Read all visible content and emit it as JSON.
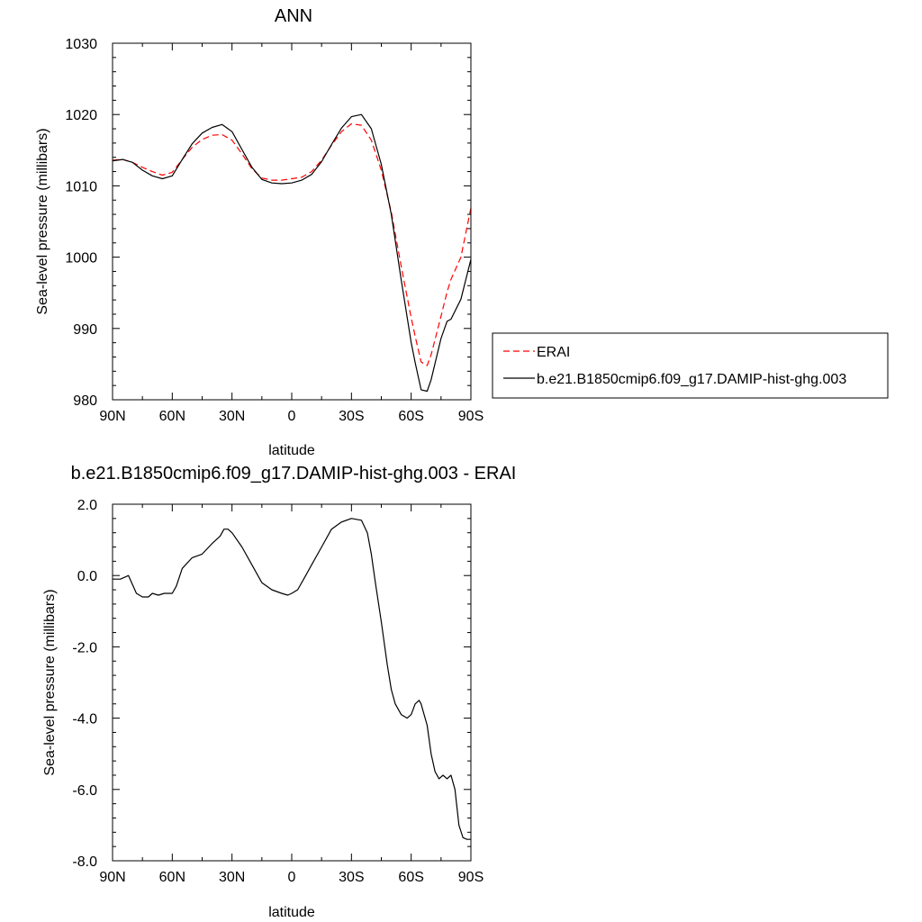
{
  "chart_data": [
    {
      "type": "line",
      "title": "ANN",
      "xlabel": "latitude",
      "ylabel": "Sea-level pressure (millibars)",
      "xlim": [
        90,
        -90
      ],
      "ylim": [
        980,
        1030
      ],
      "x_ticks": [
        90,
        60,
        30,
        0,
        -30,
        -60,
        -90
      ],
      "x_tick_labels": [
        "90N",
        "60N",
        "30N",
        "0",
        "30S",
        "60S",
        "90S"
      ],
      "y_ticks": [
        980,
        990,
        1000,
        1010,
        1020,
        1030
      ],
      "y_tick_labels": [
        "980",
        "990",
        "1000",
        "1010",
        "1020",
        "1030"
      ],
      "grid": false,
      "legend_position": "right",
      "series": [
        {
          "name": "ERAI",
          "color": "#ff0000",
          "dash": "dashed",
          "x": [
            90,
            85,
            80,
            75,
            70,
            65,
            60,
            55,
            50,
            45,
            40,
            35,
            30,
            25,
            20,
            15,
            10,
            5,
            0,
            -5,
            -10,
            -15,
            -20,
            -25,
            -30,
            -35,
            -40,
            -45,
            -50,
            -55,
            -60,
            -62,
            -65,
            -68,
            -70,
            -75,
            -78,
            -80,
            -85,
            -90
          ],
          "y": [
            1013.6,
            1013.7,
            1013.3,
            1012.6,
            1012.0,
            1011.5,
            1011.9,
            1013.7,
            1015.4,
            1016.5,
            1017.1,
            1017.2,
            1016.4,
            1014.5,
            1012.4,
            1011.1,
            1010.8,
            1010.8,
            1011.0,
            1011.2,
            1012.0,
            1013.6,
            1015.7,
            1017.6,
            1018.7,
            1018.5,
            1016.4,
            1012.2,
            1006.3,
            998.7,
            991.5,
            988.9,
            985.3,
            984.8,
            986.3,
            991.7,
            995.1,
            996.9,
            1000.0,
            1006.9
          ]
        },
        {
          "name": "b.e21.B1850cmip6.f09_g17.DAMIP-hist-ghg.003",
          "color": "#000000",
          "dash": "solid",
          "x": [
            90,
            85,
            80,
            75,
            70,
            65,
            60,
            55,
            50,
            45,
            40,
            35,
            30,
            25,
            20,
            15,
            10,
            5,
            0,
            -5,
            -10,
            -15,
            -20,
            -25,
            -30,
            -35,
            -40,
            -45,
            -50,
            -55,
            -60,
            -62,
            -65,
            -68,
            -70,
            -75,
            -78,
            -80,
            -85,
            -90
          ],
          "y": [
            1013.5,
            1013.7,
            1013.3,
            1012.2,
            1011.4,
            1011.0,
            1011.4,
            1013.7,
            1015.9,
            1017.4,
            1018.2,
            1018.6,
            1017.6,
            1015.1,
            1012.6,
            1010.9,
            1010.4,
            1010.3,
            1010.4,
            1010.8,
            1011.6,
            1013.4,
            1015.8,
            1018.1,
            1019.7,
            1020.0,
            1018.0,
            1013.0,
            1006.0,
            996.8,
            988.0,
            985.2,
            981.4,
            981.2,
            982.8,
            988.6,
            991.0,
            991.3,
            994.1,
            999.7
          ]
        }
      ]
    },
    {
      "type": "line",
      "title": "b.e21.B1850cmip6.f09_g17.DAMIP-hist-ghg.003 - ERAI",
      "xlabel": "latitude",
      "ylabel": "Sea-level pressure (millibars)",
      "xlim": [
        90,
        -90
      ],
      "ylim": [
        -8,
        2
      ],
      "x_ticks": [
        90,
        60,
        30,
        0,
        -30,
        -60,
        -90
      ],
      "x_tick_labels": [
        "90N",
        "60N",
        "30N",
        "0",
        "30S",
        "60S",
        "90S"
      ],
      "y_ticks": [
        -8,
        -6,
        -4,
        -2,
        0,
        2
      ],
      "y_tick_labels": [
        "-8.0",
        "-6.0",
        "-4.0",
        "-2.0",
        "0.0",
        "2.0"
      ],
      "grid": false,
      "series": [
        {
          "color": "#000000",
          "dash": "solid",
          "x": [
            90,
            86,
            82,
            78,
            75,
            72,
            70,
            67,
            64,
            60,
            58,
            55,
            50,
            45,
            40,
            36,
            34,
            32,
            30,
            25,
            20,
            15,
            10,
            5,
            2,
            0,
            -3,
            -6,
            -10,
            -15,
            -20,
            -25,
            -30,
            -35,
            -38,
            -40,
            -42,
            -45,
            -48,
            -50,
            -52,
            -55,
            -58,
            -60,
            -62,
            -64,
            -65,
            -66,
            -68,
            -70,
            -72,
            -74,
            -76,
            -78,
            -80,
            -82,
            -84,
            -86,
            -88,
            -90
          ],
          "y": [
            -0.1,
            -0.1,
            0.0,
            -0.5,
            -0.6,
            -0.6,
            -0.5,
            -0.55,
            -0.5,
            -0.5,
            -0.3,
            0.2,
            0.5,
            0.6,
            0.9,
            1.1,
            1.3,
            1.3,
            1.2,
            0.8,
            0.3,
            -0.2,
            -0.4,
            -0.5,
            -0.55,
            -0.5,
            -0.4,
            -0.1,
            0.3,
            0.8,
            1.3,
            1.5,
            1.6,
            1.55,
            1.2,
            0.6,
            -0.2,
            -1.3,
            -2.5,
            -3.2,
            -3.6,
            -3.9,
            -4.0,
            -3.9,
            -3.6,
            -3.5,
            -3.6,
            -3.8,
            -4.2,
            -5.0,
            -5.5,
            -5.7,
            -5.6,
            -5.7,
            -5.6,
            -6.0,
            -7.0,
            -7.35,
            -7.4,
            -7.4
          ]
        }
      ]
    }
  ]
}
